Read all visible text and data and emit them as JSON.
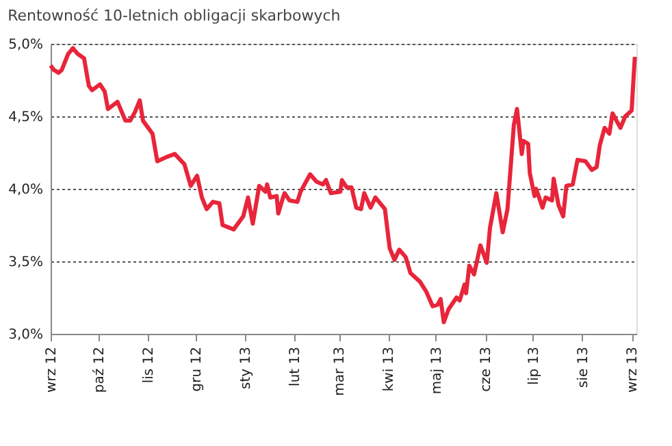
{
  "chart_data": {
    "type": "line",
    "title": "Rentowność 10-letnich obligacji skarbowych",
    "x": [
      "2012-09-01",
      "2012-09-03",
      "2012-09-06",
      "2012-09-08",
      "2012-09-12",
      "2012-09-15",
      "2012-09-18",
      "2012-09-22",
      "2012-09-25",
      "2012-09-27",
      "2012-10-02",
      "2012-10-05",
      "2012-10-07",
      "2012-10-13",
      "2012-10-18",
      "2012-10-21",
      "2012-10-24",
      "2012-10-27",
      "2012-10-29",
      "2012-11-04",
      "2012-11-07",
      "2012-11-13",
      "2012-11-18",
      "2012-11-24",
      "2012-11-28",
      "2012-12-02",
      "2012-12-05",
      "2012-12-08",
      "2012-12-12",
      "2012-12-16",
      "2012-12-18",
      "2012-12-25",
      "2012-12-31",
      "2013-01-03",
      "2013-01-06",
      "2013-01-10",
      "2013-01-14",
      "2013-01-15",
      "2013-01-17",
      "2013-01-21",
      "2013-01-22",
      "2013-01-25",
      "2013-01-26",
      "2013-01-29",
      "2013-02-03",
      "2013-02-05",
      "2013-02-11",
      "2013-02-15",
      "2013-02-19",
      "2013-02-21",
      "2013-02-24",
      "2013-03-02",
      "2013-03-03",
      "2013-03-06",
      "2013-03-09",
      "2013-03-12",
      "2013-03-15",
      "2013-03-17",
      "2013-03-21",
      "2013-03-24",
      "2013-03-30",
      "2013-04-02",
      "2013-04-05",
      "2013-04-08",
      "2013-04-12",
      "2013-04-15",
      "2013-04-21",
      "2013-04-25",
      "2013-04-29",
      "2013-05-02",
      "2013-05-04",
      "2013-05-06",
      "2013-05-09",
      "2013-05-14",
      "2013-05-16",
      "2013-05-19",
      "2013-05-20",
      "2013-05-22",
      "2013-05-25",
      "2013-05-29",
      "2013-06-02",
      "2013-06-04",
      "2013-06-08",
      "2013-06-12",
      "2013-06-15",
      "2013-06-19",
      "2013-06-21",
      "2013-06-24",
      "2013-06-25",
      "2013-06-28",
      "2013-06-29",
      "2013-07-02",
      "2013-07-03",
      "2013-07-07",
      "2013-07-09",
      "2013-07-13",
      "2013-07-14",
      "2013-07-17",
      "2013-07-20",
      "2013-07-22",
      "2013-07-26",
      "2013-07-29",
      "2013-08-03",
      "2013-08-07",
      "2013-08-10",
      "2013-08-12",
      "2013-08-15",
      "2013-08-18",
      "2013-08-20",
      "2013-08-23",
      "2013-08-25",
      "2013-08-28",
      "2013-09-01",
      "2013-09-03"
    ],
    "series": [
      {
        "color": "#e8253a",
        "values": [
          4.85,
          4.82,
          4.8,
          4.82,
          4.93,
          4.97,
          4.93,
          4.9,
          4.71,
          4.68,
          4.72,
          4.67,
          4.55,
          4.6,
          4.47,
          4.47,
          4.53,
          4.61,
          4.47,
          4.38,
          4.19,
          4.22,
          4.24,
          4.17,
          4.02,
          4.09,
          3.94,
          3.86,
          3.91,
          3.9,
          3.75,
          3.72,
          3.81,
          3.94,
          3.76,
          4.02,
          3.98,
          4.03,
          3.94,
          3.95,
          3.83,
          3.94,
          3.97,
          3.92,
          3.91,
          3.98,
          4.1,
          4.05,
          4.03,
          4.06,
          3.97,
          3.98,
          4.06,
          4.01,
          4.01,
          3.87,
          3.86,
          3.97,
          3.87,
          3.94,
          3.86,
          3.59,
          3.51,
          3.58,
          3.53,
          3.42,
          3.36,
          3.29,
          3.19,
          3.2,
          3.24,
          3.08,
          3.17,
          3.25,
          3.23,
          3.34,
          3.28,
          3.47,
          3.41,
          3.61,
          3.49,
          3.73,
          3.97,
          3.7,
          3.86,
          4.44,
          4.55,
          4.24,
          4.33,
          4.31,
          4.11,
          3.95,
          4.0,
          3.87,
          3.94,
          3.92,
          4.07,
          3.89,
          3.81,
          4.02,
          4.03,
          4.2,
          4.19,
          4.13,
          4.15,
          4.3,
          4.42,
          4.38,
          4.52,
          4.46,
          4.42,
          4.5,
          4.54,
          4.91
        ]
      }
    ],
    "xlim": [
      "2012-09-01",
      "2013-09-04"
    ],
    "xticks": [
      {
        "value": "2012-09-01",
        "label": "wrz 12"
      },
      {
        "value": "2012-10-01",
        "label": "paź 12"
      },
      {
        "value": "2012-11-01",
        "label": "lis 12"
      },
      {
        "value": "2012-12-01",
        "label": "gru 12"
      },
      {
        "value": "2013-01-01",
        "label": "sty 13"
      },
      {
        "value": "2013-02-01",
        "label": "lut 13"
      },
      {
        "value": "2013-03-01",
        "label": "mar 13"
      },
      {
        "value": "2013-04-01",
        "label": "kwi 13"
      },
      {
        "value": "2013-05-01",
        "label": "maj 13"
      },
      {
        "value": "2013-06-01",
        "label": "cze 13"
      },
      {
        "value": "2013-07-01",
        "label": "lip 13"
      },
      {
        "value": "2013-08-01",
        "label": "sie 13"
      },
      {
        "value": "2013-09-01",
        "label": "wrz 13"
      }
    ],
    "ylim": [
      3.0,
      5.0
    ],
    "yticks": [
      {
        "value": 3.0,
        "label": "3,0%"
      },
      {
        "value": 3.5,
        "label": "3,5%"
      },
      {
        "value": 4.0,
        "label": "4,0%"
      },
      {
        "value": 4.5,
        "label": "4,5%"
      },
      {
        "value": 5.0,
        "label": "5,0%"
      }
    ],
    "grid": "y",
    "line_style": "solid"
  }
}
